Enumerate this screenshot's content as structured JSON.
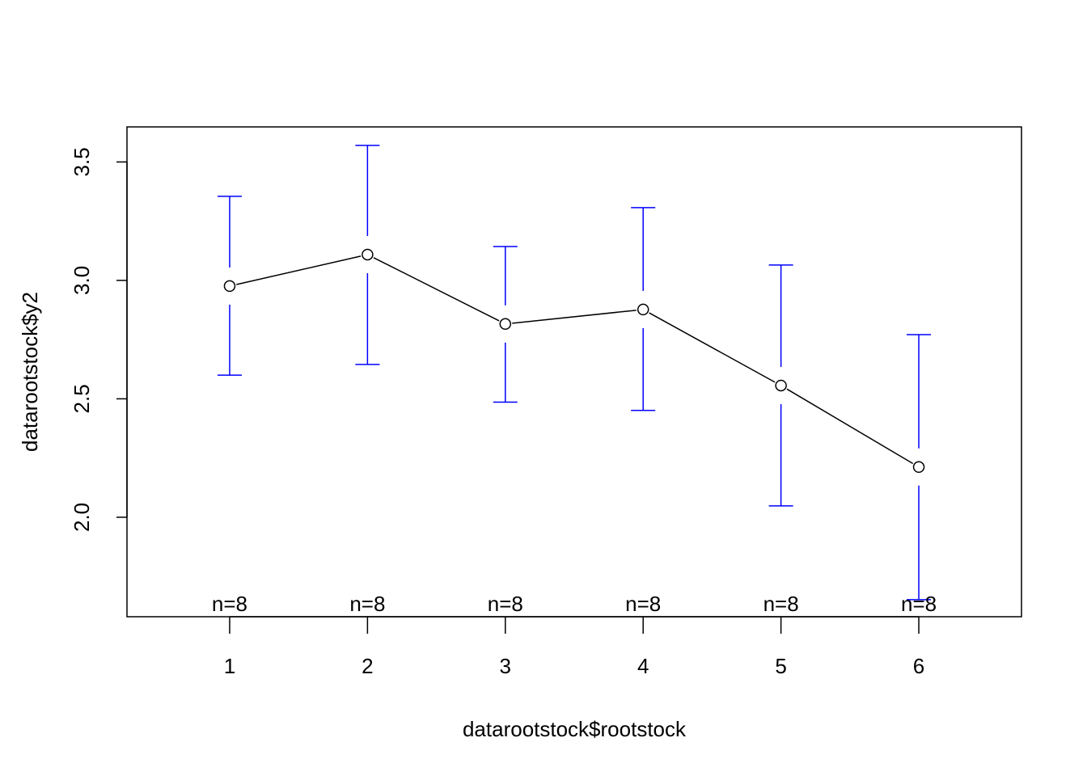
{
  "chart_data": {
    "type": "line",
    "title": "",
    "xlabel": "datarootstock$rootstock",
    "ylabel": "datarootstock$y2",
    "x": [
      1,
      2,
      3,
      4,
      5,
      6
    ],
    "x_tick_labels": [
      "1",
      "2",
      "3",
      "4",
      "5",
      "6"
    ],
    "y_ticks": [
      2.0,
      2.5,
      3.0,
      3.5
    ],
    "y_tick_labels": [
      "2.0",
      "2.5",
      "3.0",
      "3.5"
    ],
    "xlim": [
      0.255,
      6.745
    ],
    "ylim": [
      1.58,
      3.648
    ],
    "grid": false,
    "means": [
      2.976,
      3.109,
      2.816,
      2.877,
      2.556,
      2.212
    ],
    "upper": [
      3.355,
      3.57,
      3.143,
      3.307,
      3.065,
      2.771
    ],
    "lower": [
      2.6,
      2.645,
      2.486,
      2.451,
      2.048,
      1.652
    ],
    "n_labels": [
      "n=8",
      "n=8",
      "n=8",
      "n=8",
      "n=8",
      "n=8"
    ],
    "colors": {
      "line": "#000000",
      "error_bars": "#0000FF"
    }
  }
}
